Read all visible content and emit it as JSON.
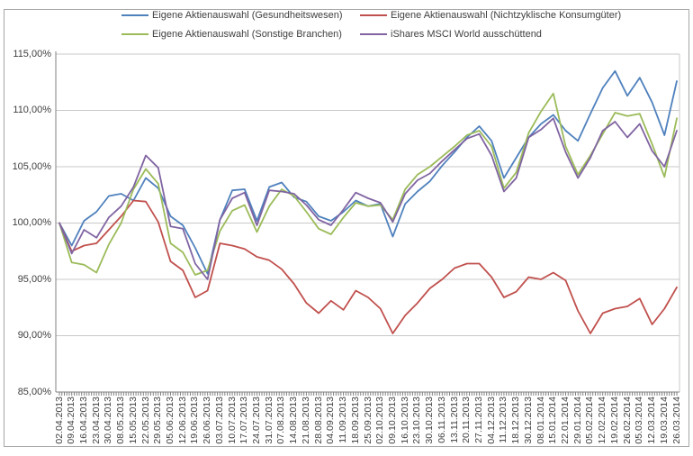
{
  "chart_data": {
    "type": "line",
    "title": "",
    "xlabel": "",
    "ylabel": "",
    "ylim": [
      85,
      115
    ],
    "y_step": 5,
    "y_tick_labels": [
      "115,00%",
      "110,00%",
      "105,00%",
      "100,00%",
      "95,00%",
      "90,00%",
      "85,00%"
    ],
    "grid": true,
    "legend_position": "top",
    "minor_ticks_per_label": 5,
    "x_labels": [
      "02.04.2013",
      "09.04.2013",
      "16.04.2013",
      "23.04.2013",
      "30.04.2013",
      "08.05.2013",
      "15.05.2013",
      "22.05.2013",
      "29.05.2013",
      "05.06.2013",
      "12.06.2013",
      "19.06.2013",
      "26.06.2013",
      "03.07.2013",
      "10.07.2013",
      "17.07.2013",
      "24.07.2013",
      "31.07.2013",
      "07.08.2013",
      "14.08.2013",
      "21.08.2013",
      "28.08.2013",
      "04.09.2013",
      "11.09.2013",
      "18.09.2013",
      "25.09.2013",
      "02.10.2013",
      "09.10.2013",
      "16.10.2013",
      "23.10.2013",
      "30.10.2013",
      "06.11.2013",
      "13.11.2013",
      "20.11.2013",
      "27.11.2013",
      "04.12.2013",
      "11.12.2013",
      "18.12.2013",
      "30.12.2013",
      "08.01.2014",
      "15.01.2014",
      "22.01.2014",
      "29.01.2014",
      "05.02.2014",
      "12.02.2014",
      "19.02.2014",
      "26.02.2014",
      "05.03.2014",
      "12.03.2014",
      "19.03.2014",
      "26.03.2014"
    ],
    "series": [
      {
        "name": "Eigene Aktienauswahl (Gesundheitswesen)",
        "slug": "gesundheitswesen",
        "color": "#4F81BD",
        "values": [
          100.0,
          98.0,
          100.2,
          101.0,
          102.4,
          102.6,
          102.0,
          104.0,
          103.1,
          100.6,
          99.8,
          97.8,
          95.5,
          100.3,
          102.9,
          103.0,
          100.2,
          103.2,
          103.6,
          102.3,
          101.9,
          100.6,
          100.2,
          101.0,
          102.0,
          101.5,
          101.7,
          98.8,
          101.7,
          102.8,
          103.7,
          105.1,
          106.3,
          107.6,
          108.6,
          107.3,
          104.0,
          105.8,
          107.6,
          108.8,
          109.6,
          108.2,
          107.3,
          109.7,
          112.0,
          113.5,
          111.3,
          112.9,
          110.7,
          107.8,
          112.6
        ]
      },
      {
        "name": "Eigene Aktienauswahl (Nichtzyklische Konsumgüter)",
        "slug": "nichtzyklische-konsumgueter",
        "color": "#C0504D",
        "values": [
          100.0,
          97.5,
          98.0,
          98.2,
          99.4,
          100.6,
          102.0,
          101.9,
          100.1,
          96.6,
          95.8,
          93.4,
          94.0,
          98.2,
          98.0,
          97.7,
          97.0,
          96.7,
          95.9,
          94.6,
          92.9,
          92.0,
          93.1,
          92.3,
          94.0,
          93.4,
          92.4,
          90.2,
          91.8,
          92.9,
          94.2,
          95.0,
          96.0,
          96.4,
          96.4,
          95.2,
          93.4,
          93.9,
          95.2,
          95.0,
          95.6,
          94.9,
          92.2,
          90.2,
          92.0,
          92.4,
          92.6,
          93.3,
          91.0,
          92.4,
          94.3
        ]
      },
      {
        "name": "Eigene Aktienauswahl (Sonstige Branchen)",
        "slug": "sonstige-branchen",
        "color": "#9BBB59",
        "values": [
          100.0,
          96.5,
          96.3,
          95.6,
          98.1,
          100.0,
          103.0,
          104.8,
          103.5,
          98.2,
          97.4,
          95.4,
          95.8,
          99.3,
          101.1,
          101.6,
          99.2,
          101.5,
          103.0,
          102.4,
          101.0,
          99.5,
          99.0,
          100.5,
          101.8,
          101.5,
          101.6,
          100.3,
          103.0,
          104.3,
          105.0,
          105.9,
          106.8,
          107.8,
          108.2,
          106.8,
          103.1,
          104.5,
          108.0,
          109.9,
          111.5,
          106.8,
          104.3,
          106.0,
          107.9,
          109.8,
          109.5,
          109.7,
          107.0,
          104.1,
          109.3
        ]
      },
      {
        "name": "iShares MSCI World ausschüttend",
        "slug": "ishares-msci-world",
        "color": "#8064A2",
        "values": [
          100.0,
          97.3,
          99.4,
          98.7,
          100.5,
          101.5,
          103.2,
          106.0,
          104.9,
          99.7,
          99.5,
          96.4,
          95.0,
          100.3,
          102.2,
          102.7,
          99.8,
          102.9,
          102.8,
          102.6,
          101.6,
          100.3,
          99.8,
          101.2,
          102.7,
          102.2,
          101.8,
          100.1,
          102.6,
          103.8,
          104.4,
          105.5,
          106.5,
          107.5,
          107.9,
          106.0,
          102.8,
          104.0,
          107.6,
          108.3,
          109.3,
          106.3,
          104.0,
          105.8,
          108.2,
          109.0,
          107.6,
          108.8,
          106.4,
          105.0,
          108.2
        ]
      }
    ],
    "colors": {
      "gridline": "#C9C9C9",
      "axis": "#808080",
      "border": "#A6A6A6",
      "text": "#3F3F3F"
    }
  }
}
